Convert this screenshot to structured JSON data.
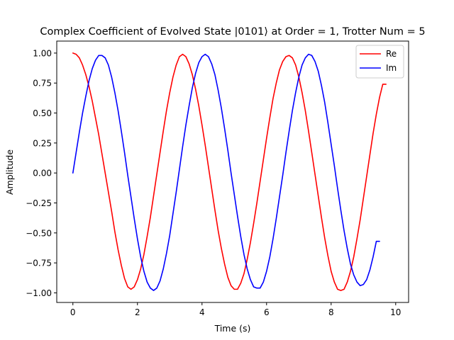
{
  "chart_data": {
    "type": "line",
    "title": "Complex Coefficient of Evolved State |0101⟩ at Order = 1, Trotter Num = 5",
    "xlabel": "Time (s)",
    "ylabel": "Amplitude",
    "xlim": [
      -0.5,
      10.4
    ],
    "ylim": [
      -1.08,
      1.1
    ],
    "xticks": [
      0,
      2,
      4,
      6,
      8,
      10
    ],
    "xtick_labels": [
      "0",
      "2",
      "4",
      "6",
      "8",
      "10"
    ],
    "yticks": [
      -1.0,
      -0.75,
      -0.5,
      -0.25,
      0.0,
      0.25,
      0.5,
      0.75,
      1.0
    ],
    "ytick_labels": [
      "−1.00",
      "−0.75",
      "−0.50",
      "−0.25",
      "0.00",
      "0.25",
      "0.50",
      "0.75",
      "1.00"
    ],
    "grid": false,
    "legend_position": "top-right",
    "series": [
      {
        "name": "Re",
        "color": "#ff0000",
        "points": [
          [
            0.0,
            1.0
          ],
          [
            0.1,
            0.99
          ],
          [
            0.2,
            0.96
          ],
          [
            0.3,
            0.9
          ],
          [
            0.4,
            0.82
          ],
          [
            0.5,
            0.72
          ],
          [
            0.6,
            0.6
          ],
          [
            0.7,
            0.46
          ],
          [
            0.8,
            0.32
          ],
          [
            0.9,
            0.16
          ],
          [
            1.0,
            0.0
          ],
          [
            1.1,
            -0.16
          ],
          [
            1.2,
            -0.32
          ],
          [
            1.3,
            -0.49
          ],
          [
            1.4,
            -0.64
          ],
          [
            1.5,
            -0.77
          ],
          [
            1.6,
            -0.88
          ],
          [
            1.7,
            -0.95
          ],
          [
            1.8,
            -0.97
          ],
          [
            1.9,
            -0.95
          ],
          [
            2.0,
            -0.89
          ],
          [
            2.1,
            -0.8
          ],
          [
            2.2,
            -0.68
          ],
          [
            2.3,
            -0.53
          ],
          [
            2.4,
            -0.37
          ],
          [
            2.5,
            -0.19
          ],
          [
            2.6,
            -0.01
          ],
          [
            2.7,
            0.17
          ],
          [
            2.8,
            0.35
          ],
          [
            2.9,
            0.52
          ],
          [
            3.0,
            0.67
          ],
          [
            3.1,
            0.8
          ],
          [
            3.2,
            0.9
          ],
          [
            3.3,
            0.97
          ],
          [
            3.4,
            0.99
          ],
          [
            3.5,
            0.97
          ],
          [
            3.6,
            0.91
          ],
          [
            3.7,
            0.82
          ],
          [
            3.8,
            0.7
          ],
          [
            3.9,
            0.56
          ],
          [
            4.0,
            0.4
          ],
          [
            4.1,
            0.23
          ],
          [
            4.2,
            0.05
          ],
          [
            4.3,
            -0.13
          ],
          [
            4.4,
            -0.31
          ],
          [
            4.5,
            -0.48
          ],
          [
            4.6,
            -0.63
          ],
          [
            4.7,
            -0.76
          ],
          [
            4.8,
            -0.87
          ],
          [
            4.9,
            -0.94
          ],
          [
            5.0,
            -0.97
          ],
          [
            5.1,
            -0.97
          ],
          [
            5.2,
            -0.92
          ],
          [
            5.3,
            -0.84
          ],
          [
            5.4,
            -0.72
          ],
          [
            5.5,
            -0.58
          ],
          [
            5.6,
            -0.42
          ],
          [
            5.7,
            -0.25
          ],
          [
            5.8,
            -0.07
          ],
          [
            5.9,
            0.11
          ],
          [
            6.0,
            0.29
          ],
          [
            6.1,
            0.46
          ],
          [
            6.2,
            0.62
          ],
          [
            6.3,
            0.75
          ],
          [
            6.4,
            0.86
          ],
          [
            6.5,
            0.93
          ],
          [
            6.6,
            0.97
          ],
          [
            6.7,
            0.98
          ],
          [
            6.8,
            0.96
          ],
          [
            6.9,
            0.9
          ],
          [
            7.0,
            0.8
          ],
          [
            7.1,
            0.67
          ],
          [
            7.2,
            0.52
          ],
          [
            7.3,
            0.35
          ],
          [
            7.4,
            0.17
          ],
          [
            7.5,
            -0.01
          ],
          [
            7.6,
            -0.19
          ],
          [
            7.7,
            -0.37
          ],
          [
            7.8,
            -0.54
          ],
          [
            7.9,
            -0.69
          ],
          [
            8.0,
            -0.82
          ],
          [
            8.1,
            -0.91
          ],
          [
            8.2,
            -0.97
          ],
          [
            8.3,
            -0.98
          ],
          [
            8.4,
            -0.97
          ],
          [
            8.5,
            -0.91
          ],
          [
            8.6,
            -0.82
          ],
          [
            8.7,
            -0.7
          ],
          [
            8.8,
            -0.55
          ],
          [
            8.9,
            -0.39
          ],
          [
            9.0,
            -0.21
          ],
          [
            9.1,
            -0.03
          ],
          [
            9.2,
            0.15
          ],
          [
            9.3,
            0.33
          ],
          [
            9.4,
            0.49
          ],
          [
            9.5,
            0.63
          ],
          [
            9.6,
            0.74
          ],
          [
            9.7,
            0.74
          ]
        ]
      },
      {
        "name": "Im",
        "color": "#0000ff",
        "points": [
          [
            0.0,
            0.0
          ],
          [
            0.1,
            0.17
          ],
          [
            0.2,
            0.34
          ],
          [
            0.3,
            0.5
          ],
          [
            0.4,
            0.64
          ],
          [
            0.5,
            0.77
          ],
          [
            0.6,
            0.87
          ],
          [
            0.7,
            0.94
          ],
          [
            0.8,
            0.98
          ],
          [
            0.9,
            0.98
          ],
          [
            1.0,
            0.96
          ],
          [
            1.1,
            0.9
          ],
          [
            1.2,
            0.8
          ],
          [
            1.3,
            0.67
          ],
          [
            1.4,
            0.52
          ],
          [
            1.5,
            0.35
          ],
          [
            1.6,
            0.17
          ],
          [
            1.7,
            -0.02
          ],
          [
            1.8,
            -0.2
          ],
          [
            1.9,
            -0.38
          ],
          [
            2.0,
            -0.55
          ],
          [
            2.1,
            -0.7
          ],
          [
            2.2,
            -0.82
          ],
          [
            2.3,
            -0.91
          ],
          [
            2.4,
            -0.96
          ],
          [
            2.5,
            -0.98
          ],
          [
            2.6,
            -0.96
          ],
          [
            2.7,
            -0.9
          ],
          [
            2.8,
            -0.8
          ],
          [
            2.9,
            -0.67
          ],
          [
            3.0,
            -0.52
          ],
          [
            3.1,
            -0.34
          ],
          [
            3.2,
            -0.16
          ],
          [
            3.3,
            0.03
          ],
          [
            3.4,
            0.22
          ],
          [
            3.5,
            0.4
          ],
          [
            3.6,
            0.56
          ],
          [
            3.7,
            0.71
          ],
          [
            3.8,
            0.83
          ],
          [
            3.9,
            0.92
          ],
          [
            4.0,
            0.97
          ],
          [
            4.1,
            0.99
          ],
          [
            4.2,
            0.97
          ],
          [
            4.3,
            0.91
          ],
          [
            4.4,
            0.82
          ],
          [
            4.5,
            0.69
          ],
          [
            4.6,
            0.54
          ],
          [
            4.7,
            0.37
          ],
          [
            4.8,
            0.19
          ],
          [
            4.9,
            0.0
          ],
          [
            5.0,
            -0.18
          ],
          [
            5.1,
            -0.36
          ],
          [
            5.2,
            -0.53
          ],
          [
            5.3,
            -0.68
          ],
          [
            5.4,
            -0.8
          ],
          [
            5.5,
            -0.89
          ],
          [
            5.6,
            -0.95
          ],
          [
            5.7,
            -0.96
          ],
          [
            5.8,
            -0.96
          ],
          [
            5.9,
            -0.91
          ],
          [
            6.0,
            -0.82
          ],
          [
            6.1,
            -0.7
          ],
          [
            6.2,
            -0.55
          ],
          [
            6.3,
            -0.38
          ],
          [
            6.4,
            -0.2
          ],
          [
            6.5,
            -0.02
          ],
          [
            6.6,
            0.17
          ],
          [
            6.7,
            0.35
          ],
          [
            6.8,
            0.52
          ],
          [
            6.9,
            0.67
          ],
          [
            7.0,
            0.8
          ],
          [
            7.1,
            0.9
          ],
          [
            7.2,
            0.96
          ],
          [
            7.3,
            0.99
          ],
          [
            7.4,
            0.98
          ],
          [
            7.5,
            0.93
          ],
          [
            7.6,
            0.85
          ],
          [
            7.7,
            0.73
          ],
          [
            7.8,
            0.59
          ],
          [
            7.9,
            0.42
          ],
          [
            8.0,
            0.24
          ],
          [
            8.1,
            0.06
          ],
          [
            8.2,
            -0.13
          ],
          [
            8.3,
            -0.31
          ],
          [
            8.4,
            -0.48
          ],
          [
            8.5,
            -0.63
          ],
          [
            8.6,
            -0.76
          ],
          [
            8.7,
            -0.85
          ],
          [
            8.8,
            -0.91
          ],
          [
            8.9,
            -0.94
          ],
          [
            9.0,
            -0.93
          ],
          [
            9.1,
            -0.89
          ],
          [
            9.2,
            -0.81
          ],
          [
            9.3,
            -0.7
          ],
          [
            9.4,
            -0.57
          ],
          [
            9.5,
            -0.57
          ]
        ]
      }
    ]
  }
}
